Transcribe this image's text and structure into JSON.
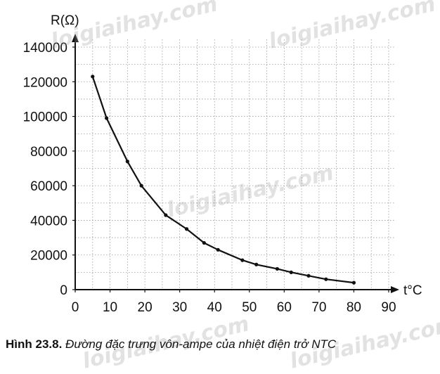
{
  "chart_data": {
    "type": "line",
    "xlabel": "t°C",
    "ylabel": "R(Ω)",
    "xlim": [
      0,
      90
    ],
    "ylim": [
      0,
      140000
    ],
    "x_ticks": [
      0,
      10,
      20,
      30,
      40,
      50,
      60,
      70,
      80,
      90
    ],
    "y_ticks": [
      0,
      20000,
      40000,
      60000,
      80000,
      100000,
      120000,
      140000
    ],
    "grid": true,
    "series": [
      {
        "x": [
          5,
          9,
          15,
          19,
          26,
          32,
          37,
          41,
          48,
          52,
          58,
          62,
          67,
          72,
          80
        ],
        "values": [
          123000,
          99000,
          74000,
          60000,
          43000,
          35000,
          27000,
          23000,
          17000,
          14500,
          12000,
          10000,
          8000,
          6000,
          4000
        ]
      }
    ]
  },
  "caption": {
    "label": "Hình 23.8.",
    "text": "Đường đặc trưng vôn-ampe của nhiệt điện trở NTC"
  },
  "watermarks": [
    "loigiaihay.com",
    "loigiaihay.com",
    "loigiaihay.com",
    "loigiaihay.com",
    "loigiaihay.com"
  ]
}
